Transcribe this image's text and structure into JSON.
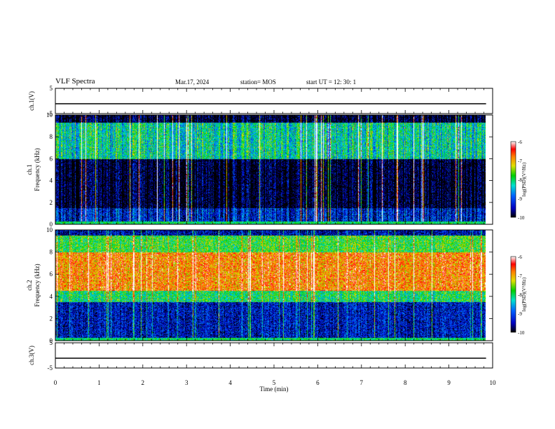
{
  "header": {
    "title": "VLF Spectra",
    "date": "Mar.17, 2024",
    "station": "station= MOS",
    "start": "start  UT =   12: 30: 1"
  },
  "chart_data": [
    {
      "type": "line",
      "panel": "ch1-waveform",
      "ylabel": "ch.1(V)",
      "ylim": [
        -5,
        5
      ],
      "yticks": [
        5,
        -5
      ],
      "series": [
        {
          "x": [
            0,
            9.85
          ],
          "values": [
            0,
            0
          ]
        }
      ]
    },
    {
      "type": "heatmap",
      "panel": "ch1-spectrogram",
      "ylabel_channel": "ch.1",
      "ylabel": "Frequency (kHz)",
      "ylim": [
        0,
        10
      ],
      "yticks": [
        0,
        2,
        4,
        6,
        8,
        10
      ],
      "xlim": [
        0,
        9.85
      ],
      "colorbar": {
        "label": "log(PSD)(V²/Hz)",
        "range": [
          -10,
          -6
        ],
        "ticks": [
          -6,
          -7,
          -8,
          -9,
          -10
        ]
      },
      "description_levels": {
        "0-1.5kHz": -9.3,
        "1.5-6kHz": -10,
        "6-9.3kHz": -8.2,
        "9.3-10kHz": -10
      }
    },
    {
      "type": "heatmap",
      "panel": "ch2-spectrogram",
      "ylabel_channel": "ch.2",
      "ylabel": "Frequency (kHz)",
      "ylim": [
        0,
        10
      ],
      "yticks": [
        0,
        2,
        4,
        6,
        8,
        10
      ],
      "xlim": [
        0,
        9.85
      ],
      "colorbar": {
        "label": "log(PSD)(V²/Hz)",
        "range": [
          -10,
          -6
        ],
        "ticks": [
          -6,
          -7,
          -8,
          -9,
          -10
        ]
      },
      "description_levels": {
        "0-3.5kHz": -9.4,
        "3.5-4.5kHz": -8.0,
        "4.5-8kHz": -6.8,
        "8-9.5kHz": -7.8,
        "9.5-10kHz": -9.5
      }
    },
    {
      "type": "line",
      "panel": "ch3-waveform",
      "ylabel": "ch.3(V)",
      "ylim": [
        -5,
        5
      ],
      "yticks": [
        5,
        -5
      ],
      "series": [
        {
          "x": [
            0,
            9.85
          ],
          "values": [
            0,
            0
          ]
        }
      ]
    }
  ],
  "xaxis": {
    "label": "Time  (min)",
    "ticks": [
      "0",
      "1",
      "2",
      "3",
      "4",
      "5",
      "6",
      "7",
      "8",
      "9",
      "10"
    ]
  }
}
